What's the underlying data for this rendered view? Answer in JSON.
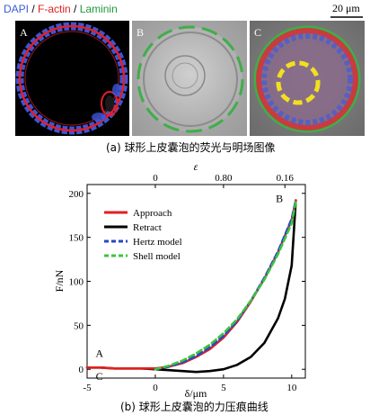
{
  "figure_a": {
    "stain_labels": [
      {
        "text": "DAPI",
        "color": "#3a5bd9"
      },
      {
        "text": " / ",
        "color": "#000000"
      },
      {
        "text": "F-actin",
        "color": "#e0201f"
      },
      {
        "text": " / ",
        "color": "#000000"
      },
      {
        "text": "Laminin",
        "color": "#1f9a3a"
      }
    ],
    "scalebar_label": "20 μm",
    "panels": [
      {
        "label": "A",
        "type": "fluorescence"
      },
      {
        "label": "B",
        "type": "brightfield"
      },
      {
        "label": "C",
        "type": "merge"
      }
    ],
    "caption": "(a) 球形上皮囊泡的荧光与明场图像"
  },
  "chart_data": {
    "type": "line",
    "xlabel": "δ/μm",
    "ylabel": "F/nN",
    "top_axis_label": "ε",
    "xlim": [
      -5,
      11
    ],
    "ylim": [
      -10,
      210
    ],
    "x_ticks": [
      -5,
      0,
      5,
      10
    ],
    "y_ticks": [
      0,
      50,
      100,
      150,
      200
    ],
    "top_ticks": [
      {
        "x": 0,
        "label": "0"
      },
      {
        "x": 5,
        "label": "0.80"
      },
      {
        "x": 9.5,
        "label": "0.16"
      }
    ],
    "annotations": [
      {
        "text": "B",
        "x": 9.1,
        "y": 190
      },
      {
        "text": "A",
        "x": -4.1,
        "y": 14
      },
      {
        "text": "C",
        "x": -4.1,
        "y": -12
      }
    ],
    "legend_position": "top-left",
    "grid": false,
    "series": [
      {
        "name": "Approach",
        "color": "#e02020",
        "style": "solid",
        "x": [
          -5,
          -4,
          -3,
          -2,
          -1,
          0,
          1,
          2,
          3,
          4,
          5,
          6,
          7,
          8,
          9,
          10,
          10.3
        ],
        "y": [
          2,
          2,
          1,
          1,
          1,
          1,
          3,
          7,
          14,
          23,
          36,
          54,
          77,
          103,
          133,
          170,
          192
        ]
      },
      {
        "name": "Retract",
        "color": "#000000",
        "style": "solid",
        "x": [
          -5,
          -4,
          -3,
          -2,
          -1,
          0,
          1,
          2,
          3,
          4,
          5,
          6,
          7,
          8,
          9,
          9.5,
          10,
          10.3
        ],
        "y": [
          2,
          2,
          1,
          1,
          1,
          0,
          -1,
          -2,
          -3,
          -2,
          0,
          5,
          14,
          30,
          58,
          80,
          118,
          192
        ]
      },
      {
        "name": "Hertz model",
        "color": "#2a46c8",
        "style": "dashed",
        "x": [
          0,
          1,
          2,
          3,
          4,
          5,
          6,
          7,
          8,
          9,
          10,
          10.3
        ],
        "y": [
          0,
          3,
          8,
          15,
          25,
          38,
          55,
          78,
          104,
          134,
          171,
          192
        ]
      },
      {
        "name": "Shell model",
        "color": "#3cc43c",
        "style": "dashed",
        "x": [
          0,
          1,
          2,
          3,
          4,
          5,
          6,
          7,
          8,
          9,
          10,
          10.3
        ],
        "y": [
          0,
          4,
          10,
          18,
          28,
          41,
          57,
          78,
          102,
          131,
          166,
          190
        ]
      }
    ],
    "caption": "(b) 球形上皮囊泡的力压痕曲线"
  }
}
